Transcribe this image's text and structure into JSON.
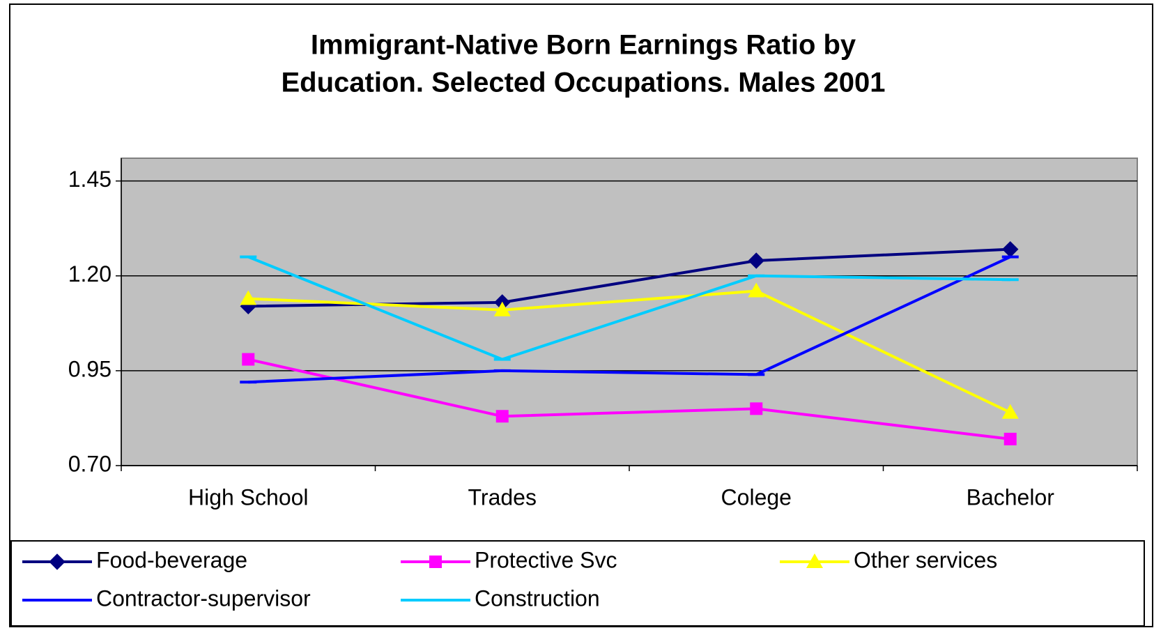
{
  "chart_data": {
    "type": "line",
    "title": [
      "Immigrant-Native Born Earnings Ratio by",
      "Education. Selected Occupations. Males 2001"
    ],
    "categories": [
      "High School",
      "Trades",
      "Colege",
      "Bachelor"
    ],
    "series": [
      {
        "name": "Food-beverage",
        "color": "#000080",
        "marker": "diamond",
        "values": [
          1.12,
          1.13,
          1.24,
          1.27
        ]
      },
      {
        "name": "Protective Svc",
        "color": "#ff00ff",
        "marker": "square",
        "values": [
          0.98,
          0.83,
          0.85,
          0.77
        ]
      },
      {
        "name": "Other services",
        "color": "#ffff00",
        "marker": "triangle",
        "values": [
          1.14,
          1.11,
          1.16,
          0.84
        ]
      },
      {
        "name": "Contractor-supervisor",
        "color": "#0000ff",
        "marker": "dash",
        "values": [
          0.92,
          0.95,
          0.94,
          1.25
        ]
      },
      {
        "name": "Construction",
        "color": "#00ccff",
        "marker": "dash",
        "values": [
          1.25,
          0.98,
          1.2,
          1.19
        ]
      }
    ],
    "ylim": [
      0.7,
      1.51
    ],
    "yticks": [
      {
        "value": 0.7,
        "label": "0.70"
      },
      0.95,
      {
        "value": 1.2,
        "label": "1.20"
      },
      1.45
    ],
    "grid": true,
    "plot_background": "#c0c0c0",
    "legend": "bottom"
  }
}
